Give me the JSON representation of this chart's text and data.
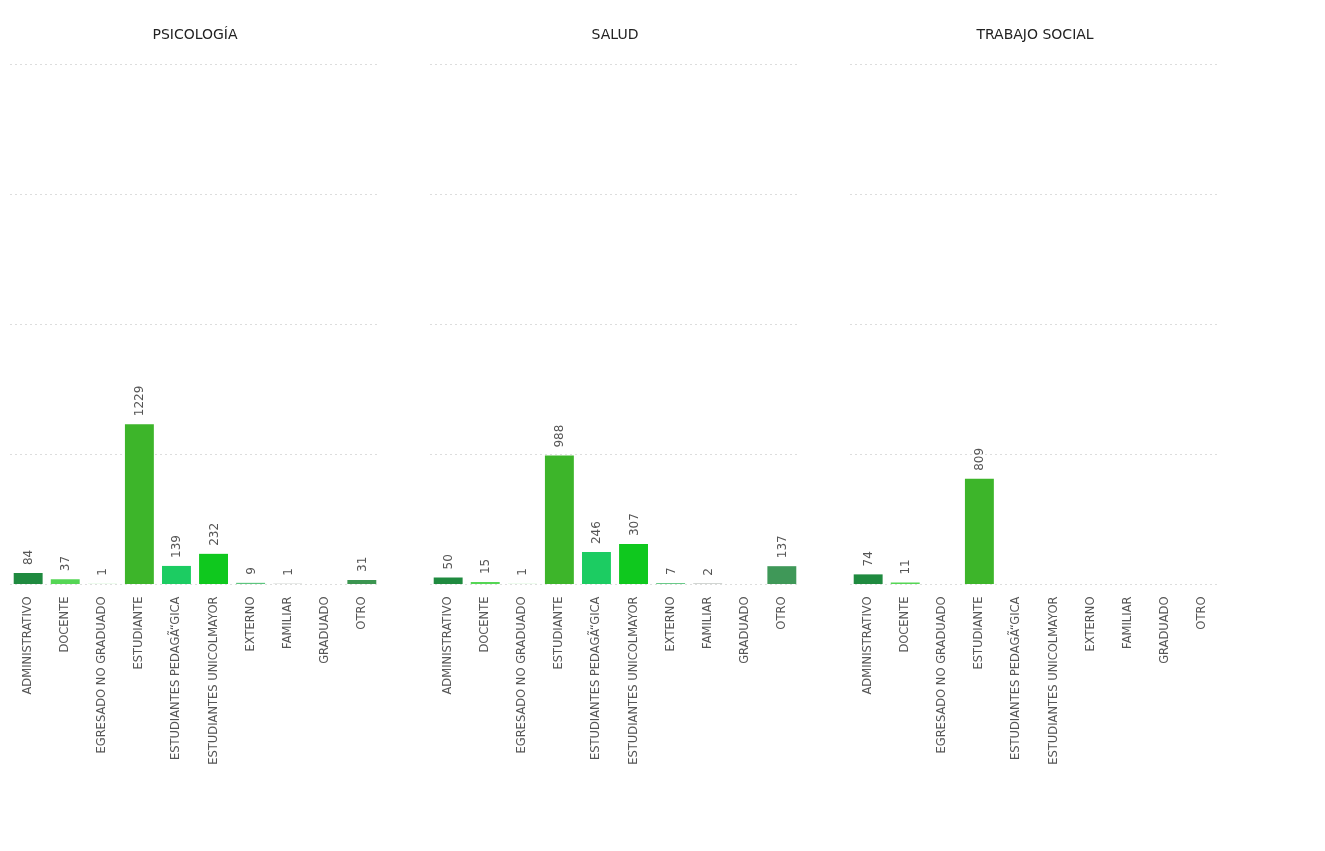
{
  "chart_data": [
    {
      "type": "bar",
      "title": "PSICOLOGÍA",
      "categories": [
        "ADMINISTRATIVO",
        "DOCENTE",
        "EGRESADO NO GRADUADO",
        "ESTUDIANTE",
        "ESTUDIANTES PEDAGÃ“GICA",
        "ESTUDIANTES UNICOLMAYOR",
        "EXTERNO",
        "FAMILIAR",
        "GRADUADO",
        "OTRO"
      ],
      "values": [
        84,
        37,
        1,
        1229,
        139,
        232,
        9,
        1,
        null,
        31
      ],
      "colors": [
        "#1f8a3f",
        "#55d655",
        "#7ee87e",
        "#3db52a",
        "#1ccc62",
        "#0fc81e",
        "#5cc57e",
        "#4f5f52",
        null,
        "#3b9550"
      ],
      "ylim": [
        0,
        4000
      ],
      "yticks": [
        {
          "value": 0,
          "label": null
        },
        {
          "value": 1000,
          "label": null
        },
        {
          "value": 2000,
          "label": null
        },
        {
          "value": 3000,
          "label": null
        },
        {
          "value": 4000,
          "label": null
        }
      ],
      "grid": "y",
      "tick_labels": "x",
      "data_labels": true
    },
    {
      "type": "bar",
      "title": "SALUD",
      "categories": [
        "ADMINISTRATIVO",
        "DOCENTE",
        "EGRESADO NO GRADUADO",
        "ESTUDIANTE",
        "ESTUDIANTES PEDAGÃ“GICA",
        "ESTUDIANTES UNICOLMAYOR",
        "EXTERNO",
        "FAMILIAR",
        "GRADUADO",
        "OTRO"
      ],
      "values": [
        50,
        15,
        1,
        988,
        246,
        307,
        7,
        2,
        null,
        137
      ],
      "colors": [
        "#1f8a3f",
        "#55d655",
        "#7ee87e",
        "#3db52a",
        "#1ccc62",
        "#0fc81e",
        "#5cc57e",
        "#4f5f52",
        null,
        "#3f9858"
      ],
      "ylim": [
        0,
        4000
      ],
      "yticks": [
        {
          "value": 0,
          "label": null
        },
        {
          "value": 1000,
          "label": null
        },
        {
          "value": 2000,
          "label": null
        },
        {
          "value": 3000,
          "label": null
        },
        {
          "value": 4000,
          "label": null
        }
      ],
      "grid": "y",
      "tick_labels": "x",
      "data_labels": true
    },
    {
      "type": "bar",
      "title": "TRABAJO SOCIAL",
      "categories": [
        "ADMINISTRATIVO",
        "DOCENTE",
        "EGRESADO NO GRADUADO",
        "ESTUDIANTE",
        "ESTUDIANTES PEDAGÃ“GICA",
        "ESTUDIANTES UNICOLMAYOR",
        "EXTERNO",
        "FAMILIAR",
        "GRADUADO",
        "OTRO"
      ],
      "values": [
        74,
        11,
        null,
        809,
        null,
        null,
        null,
        null,
        null,
        null
      ],
      "colors": [
        "#1f8a3f",
        "#55d655",
        null,
        "#3db52a",
        null,
        null,
        null,
        null,
        null,
        null
      ],
      "ylim": [
        0,
        4000
      ],
      "yticks": [
        {
          "value": 0,
          "label": null
        },
        {
          "value": 1000,
          "label": null
        },
        {
          "value": 2000,
          "label": null
        },
        {
          "value": 3000,
          "label": null
        },
        {
          "value": 4000,
          "label": null
        }
      ],
      "grid": "y",
      "tick_labels": "x",
      "data_labels": true
    }
  ]
}
